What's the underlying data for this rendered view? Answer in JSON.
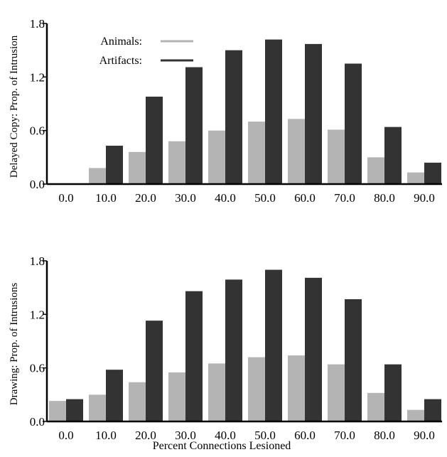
{
  "chart_data": [
    {
      "type": "bar",
      "ylabel": "Delayed Copy: Prop. of Intrusion",
      "xlabel": "",
      "categories": [
        "0.0",
        "10.0",
        "20.0",
        "30.0",
        "40.0",
        "50.0",
        "60.0",
        "70.0",
        "80.0",
        "90.0"
      ],
      "yticks": [
        "0.0",
        "0.6",
        "1.2",
        "1.8"
      ],
      "ylim": [
        0,
        1.8
      ],
      "legend": "top-left",
      "series": [
        {
          "name": "Animals:",
          "color": "#b4b4b4",
          "values": [
            0.0,
            0.18,
            0.36,
            0.48,
            0.6,
            0.7,
            0.73,
            0.61,
            0.3,
            0.13
          ]
        },
        {
          "name": "Artifacts:",
          "color": "#333333",
          "values": [
            0.0,
            0.43,
            0.98,
            1.31,
            1.5,
            1.62,
            1.57,
            1.35,
            0.64,
            0.24
          ]
        }
      ]
    },
    {
      "type": "bar",
      "ylabel": "Drawing: Prop. of Intrusions",
      "xlabel": "Percent Connections Lesioned",
      "categories": [
        "0.0",
        "10.0",
        "20.0",
        "30.0",
        "40.0",
        "50.0",
        "60.0",
        "70.0",
        "80.0",
        "90.0"
      ],
      "yticks": [
        "0.0",
        "0.6",
        "1.2",
        "1.8"
      ],
      "ylim": [
        0,
        1.8
      ],
      "series": [
        {
          "name": "Animals",
          "color": "#b4b4b4",
          "values": [
            0.23,
            0.3,
            0.44,
            0.55,
            0.65,
            0.72,
            0.74,
            0.64,
            0.32,
            0.13
          ]
        },
        {
          "name": "Artifacts",
          "color": "#333333",
          "values": [
            0.25,
            0.58,
            1.13,
            1.46,
            1.59,
            1.7,
            1.61,
            1.37,
            0.64,
            0.25
          ]
        }
      ]
    }
  ]
}
